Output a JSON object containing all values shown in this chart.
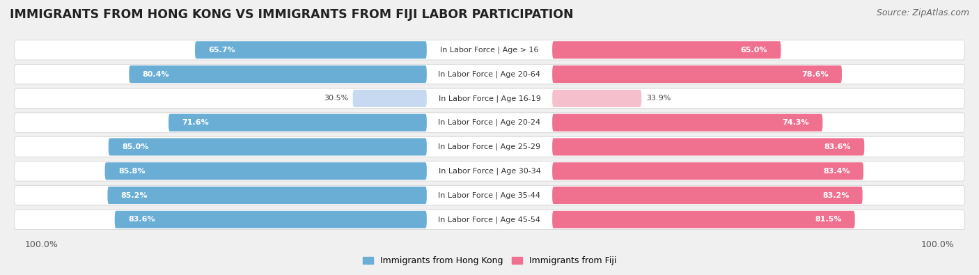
{
  "title": "IMMIGRANTS FROM HONG KONG VS IMMIGRANTS FROM FIJI LABOR PARTICIPATION",
  "source": "Source: ZipAtlas.com",
  "categories": [
    "In Labor Force | Age > 16",
    "In Labor Force | Age 20-64",
    "In Labor Force | Age 16-19",
    "In Labor Force | Age 20-24",
    "In Labor Force | Age 25-29",
    "In Labor Force | Age 30-34",
    "In Labor Force | Age 35-44",
    "In Labor Force | Age 45-54"
  ],
  "hong_kong_values": [
    65.7,
    80.4,
    30.5,
    71.6,
    85.0,
    85.8,
    85.2,
    83.6
  ],
  "fiji_values": [
    65.0,
    78.6,
    33.9,
    74.3,
    83.6,
    83.4,
    83.2,
    81.5
  ],
  "hong_kong_color": "#6aaed6",
  "hong_kong_color_light": "#c6d9f0",
  "fiji_color": "#f07090",
  "fiji_color_light": "#f5c0cc",
  "label_hong_kong": "Immigrants from Hong Kong",
  "label_fiji": "Immigrants from Fiji",
  "background_color": "#f0f0f0",
  "row_bg_color": "#e8e8e8",
  "bar_bg_color": "#e0e0e8",
  "title_fontsize": 12.5,
  "source_fontsize": 9,
  "tick_fontsize": 9,
  "cat_fontsize": 8,
  "value_fontsize": 8,
  "legend_fontsize": 9,
  "light_threshold": 50
}
